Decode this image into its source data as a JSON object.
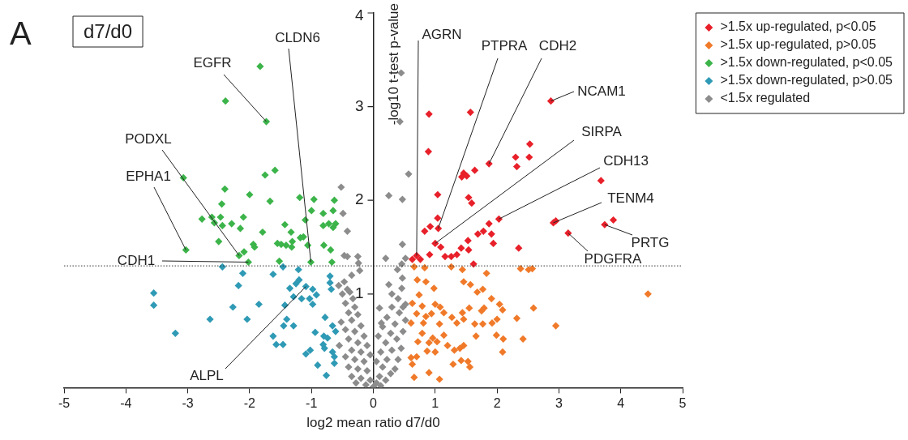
{
  "chart_data": {
    "type": "scatter",
    "title": "d7/d0",
    "xlabel": "log2 mean ratio d7/d0",
    "ylabel": "-log10 t-test p-value",
    "xlim": [
      -5,
      5
    ],
    "xticks": [
      -5,
      -4,
      -3,
      -2,
      -1,
      0,
      1,
      2,
      3,
      4,
      5
    ],
    "ylim": [
      0,
      4
    ],
    "yticks": [
      1,
      2,
      3,
      4
    ],
    "grid": false,
    "legend": "top right",
    "marker": "diamond",
    "ref_lines": [
      {
        "axis": "y",
        "value": 1.3,
        "line_style": "dotted"
      }
    ],
    "annotations": [
      "A",
      {
        "text": "CLDN6",
        "x": -1.01,
        "y": 1.34
      },
      {
        "text": "EGFR",
        "x": -1.73,
        "y": 2.84
      },
      {
        "text": "PODXL",
        "x": -2.17,
        "y": 1.41
      },
      {
        "text": "EPHA1",
        "x": -3.03,
        "y": 1.47
      },
      {
        "text": "CDH1",
        "x": -2.02,
        "y": 1.34
      },
      {
        "text": "ALPL",
        "x": -1.09,
        "y": 1.08
      },
      {
        "text": "AGRN",
        "x": 0.7,
        "y": 1.41
      },
      {
        "text": "PTPRA",
        "x": 1.05,
        "y": 1.7
      },
      {
        "text": "CDH2",
        "x": 1.87,
        "y": 2.39
      },
      {
        "text": "NCAM1",
        "x": 2.87,
        "y": 3.06
      },
      {
        "text": "SIRPA",
        "x": 1.0,
        "y": 1.54
      },
      {
        "text": "CDH13",
        "x": 2.03,
        "y": 1.8
      },
      {
        "text": "TENM4",
        "x": 2.91,
        "y": 1.76
      },
      {
        "text": "PRTG",
        "x": 3.74,
        "y": 1.74
      },
      {
        "text": "PDGFRA",
        "x": 3.15,
        "y": 1.65
      }
    ],
    "series": [
      {
        "name": ">1.5x up-regulated, p<0.05",
        "color": "#e8202a",
        "x": [
          2.87,
          0.9,
          1.57,
          0.89,
          2.53,
          2.3,
          2.52,
          2.32,
          1.87,
          1.64,
          1.46,
          1.43,
          1.51,
          3.68,
          1.04,
          1.54,
          1.59,
          1.04,
          2.03,
          1.87,
          1.05,
          0.92,
          0.83,
          2.91,
          2.95,
          3.88,
          3.74,
          3.15,
          1.69,
          1.78,
          1.91,
          1.0,
          1.09,
          1.53,
          1.94,
          1.42,
          1.54,
          0.91,
          1.16,
          1.26,
          1.35,
          2.35,
          0.7,
          0.63,
          0.76,
          1.62
        ],
        "values": [
          3.06,
          2.92,
          2.94,
          2.52,
          2.6,
          2.46,
          2.46,
          2.36,
          2.39,
          2.32,
          2.29,
          2.25,
          2.26,
          2.21,
          2.06,
          2.03,
          1.97,
          1.81,
          1.8,
          1.75,
          1.7,
          1.72,
          1.67,
          1.76,
          1.78,
          1.79,
          1.74,
          1.65,
          1.64,
          1.67,
          1.64,
          1.54,
          1.5,
          1.57,
          1.54,
          1.49,
          1.47,
          1.42,
          1.4,
          1.4,
          1.42,
          1.49,
          1.41,
          1.37,
          1.37,
          1.32
        ]
      },
      {
        "name": ">1.5x up-regulated, p>0.05",
        "color": "#f07a2a",
        "x": [
          4.44,
          0.66,
          0.83,
          1.26,
          1.44,
          1.83,
          2.38,
          2.51,
          2.57,
          0.71,
          0.85,
          0.98,
          1.46,
          1.57,
          1.77,
          1.68,
          0.74,
          1.91,
          0.63,
          0.79,
          1.0,
          1.08,
          2.04,
          2.09,
          2.59,
          1.79,
          1.55,
          1.44,
          1.75,
          2.32,
          2.95,
          0.7,
          0.85,
          0.94,
          1.14,
          1.27,
          1.35,
          1.46,
          1.64,
          1.77,
          1.92,
          2.0,
          0.81,
          1.07,
          0.61,
          0.79,
          0.96,
          1.14,
          1.66,
          1.99,
          2.1,
          2.42,
          0.72,
          0.9,
          1.03,
          1.2,
          1.31,
          1.4,
          1.46,
          0.87,
          1.0,
          2.09,
          0.61,
          0.7,
          1.29,
          1.42,
          1.53,
          1.56,
          0.63,
          0.9,
          0.66,
          1.07
        ],
        "values": [
          1.0,
          1.29,
          1.28,
          1.29,
          1.26,
          1.22,
          1.27,
          1.26,
          1.27,
          1.15,
          1.13,
          1.06,
          1.13,
          1.1,
          1.05,
          1.02,
          0.99,
          0.95,
          0.9,
          0.87,
          0.89,
          0.86,
          0.89,
          0.83,
          0.85,
          0.85,
          0.85,
          0.8,
          0.82,
          0.74,
          0.66,
          0.79,
          0.76,
          0.79,
          0.8,
          0.75,
          0.69,
          0.73,
          0.68,
          0.68,
          0.69,
          0.73,
          0.69,
          0.68,
          0.69,
          0.58,
          0.53,
          0.56,
          0.55,
          0.56,
          0.52,
          0.52,
          0.49,
          0.48,
          0.49,
          0.45,
          0.4,
          0.42,
          0.45,
          0.39,
          0.38,
          0.38,
          0.32,
          0.33,
          0.25,
          0.29,
          0.28,
          0.22,
          0.25,
          0.16,
          0.11,
          0.09
        ]
      },
      {
        "name": ">1.5x down-regulated, p<0.05",
        "color": "#3cb44a",
        "x": [
          -1.83,
          -2.39,
          -1.73,
          -3.07,
          -2.4,
          -1.75,
          -1.59,
          -2.0,
          -1.67,
          -2.45,
          -2.77,
          -2.61,
          -2.47,
          -2.57,
          -2.44,
          -2.29,
          -2.1,
          -2.15,
          -1.79,
          -2.5,
          -3.03,
          -2.17,
          -2.09,
          -2.02,
          -1.94,
          -1.92,
          -1.52,
          -1.55,
          -1.49,
          -1.41,
          -1.32,
          -1.31,
          -1.33,
          -1.43,
          -1.19,
          -0.96,
          -1.0,
          -1.1,
          -1.18,
          -1.13,
          -1.06,
          -1.01,
          -0.81,
          -0.81,
          -0.72,
          -0.65,
          -0.61,
          -0.65,
          -0.63,
          -0.8,
          -0.69,
          -0.67
        ],
        "values": [
          3.43,
          3.06,
          2.84,
          2.24,
          2.12,
          2.27,
          2.32,
          2.06,
          1.99,
          1.96,
          1.8,
          1.82,
          1.82,
          1.76,
          1.73,
          1.75,
          1.82,
          1.7,
          1.66,
          1.56,
          1.47,
          1.41,
          1.45,
          1.34,
          1.53,
          1.5,
          1.35,
          1.54,
          1.53,
          1.52,
          1.5,
          1.56,
          1.66,
          1.74,
          2.03,
          2.01,
          1.89,
          1.79,
          1.6,
          1.61,
          1.52,
          1.34,
          1.86,
          1.73,
          1.75,
          1.71,
          1.75,
          1.89,
          2.0,
          1.52,
          1.47,
          1.34
        ]
      },
      {
        "name": ">1.5x down-regulated, p>0.05",
        "color": "#2f9ab5",
        "x": [
          -3.55,
          -3.55,
          -3.2,
          -2.64,
          -2.44,
          -2.11,
          -2.18,
          -2.27,
          -2.04,
          -1.85,
          -1.62,
          -1.46,
          -1.21,
          -1.2,
          -1.25,
          -1.35,
          -1.09,
          -0.98,
          -0.92,
          -1.29,
          -1.16,
          -1.03,
          -0.98,
          -1.43,
          -0.7,
          -0.7,
          -0.68,
          -1.4,
          -1.45,
          -1.29,
          -1.62,
          -1.57,
          -1.46,
          -0.78,
          -0.66,
          -0.61,
          -0.94,
          -0.8,
          -0.74,
          -0.81,
          -0.79,
          -1.09,
          -1.02,
          -0.66,
          -0.63,
          -0.63,
          -0.9,
          -0.76
        ],
        "values": [
          1.01,
          0.88,
          0.58,
          0.73,
          1.29,
          1.22,
          1.09,
          0.86,
          0.73,
          0.89,
          1.21,
          1.29,
          1.26,
          1.15,
          1.11,
          1.06,
          1.08,
          1.05,
          0.99,
          0.97,
          0.95,
          0.95,
          0.89,
          0.88,
          1.19,
          1.12,
          1.05,
          0.73,
          0.66,
          0.66,
          0.55,
          0.46,
          0.46,
          0.75,
          0.66,
          0.6,
          0.59,
          0.55,
          0.53,
          0.46,
          0.42,
          0.36,
          0.4,
          0.38,
          0.33,
          0.26,
          0.24,
          0.13
        ]
      },
      {
        "name": "<1.5x regulated",
        "color": "#8c8c8c",
        "x": [
          0.45,
          0.43,
          0.57,
          0.25,
          0.47,
          -0.52,
          -0.49,
          -0.42,
          -0.47,
          -0.42,
          -0.25,
          -0.24,
          0.2,
          0.47,
          0.52,
          0.46,
          -0.47,
          -0.42,
          -0.5,
          -0.38,
          -0.33,
          -0.45,
          -0.3,
          -0.4,
          -0.25,
          -0.35,
          -0.52,
          -0.2,
          -0.45,
          -0.3,
          -0.15,
          -0.4,
          -0.25,
          -0.55,
          -0.1,
          -0.35,
          -0.2,
          -0.45,
          -0.05,
          -0.3,
          -0.15,
          -0.4,
          -0.25,
          -0.1,
          -0.35,
          -0.2,
          -0.05,
          -0.28,
          -0.12,
          0.0,
          0.05,
          0.12,
          0.1,
          0.2,
          0.28,
          0.15,
          0.35,
          0.05,
          0.22,
          0.4,
          0.12,
          0.3,
          0.45,
          0.2,
          0.38,
          0.08,
          0.28,
          0.48,
          0.15,
          0.35,
          0.52,
          0.22,
          0.42,
          0.13,
          0.3,
          0.48,
          0.4,
          0.52,
          0.46,
          0.3,
          0.39,
          0.47,
          0.25,
          -0.56,
          -0.35,
          -0.22,
          0.1
        ],
        "values": [
          3.36,
          2.84,
          2.28,
          2.05,
          2.01,
          2.14,
          1.86,
          1.67,
          1.41,
          1.4,
          1.4,
          1.33,
          1.38,
          1.53,
          1.38,
          1.32,
          1.13,
          1.05,
          1.0,
          1.02,
          0.95,
          0.9,
          0.86,
          0.8,
          0.78,
          0.72,
          0.7,
          0.66,
          0.62,
          0.6,
          0.55,
          0.52,
          0.48,
          0.45,
          0.45,
          0.4,
          0.38,
          0.33,
          0.35,
          0.3,
          0.28,
          0.22,
          0.2,
          0.18,
          0.12,
          0.1,
          0.08,
          0.05,
          0.03,
          0.01,
          0.05,
          0.02,
          0.12,
          0.08,
          0.15,
          0.22,
          0.2,
          0.28,
          0.3,
          0.3,
          0.38,
          0.4,
          0.42,
          0.48,
          0.52,
          0.55,
          0.58,
          0.6,
          0.65,
          0.68,
          0.72,
          0.75,
          0.8,
          0.69,
          0.86,
          0.86,
          0.95,
          0.89,
          1.06,
          1.0,
          1.26,
          1.17,
          1.1,
          1.09,
          1.2,
          1.25,
          0.85
        ]
      }
    ]
  }
}
